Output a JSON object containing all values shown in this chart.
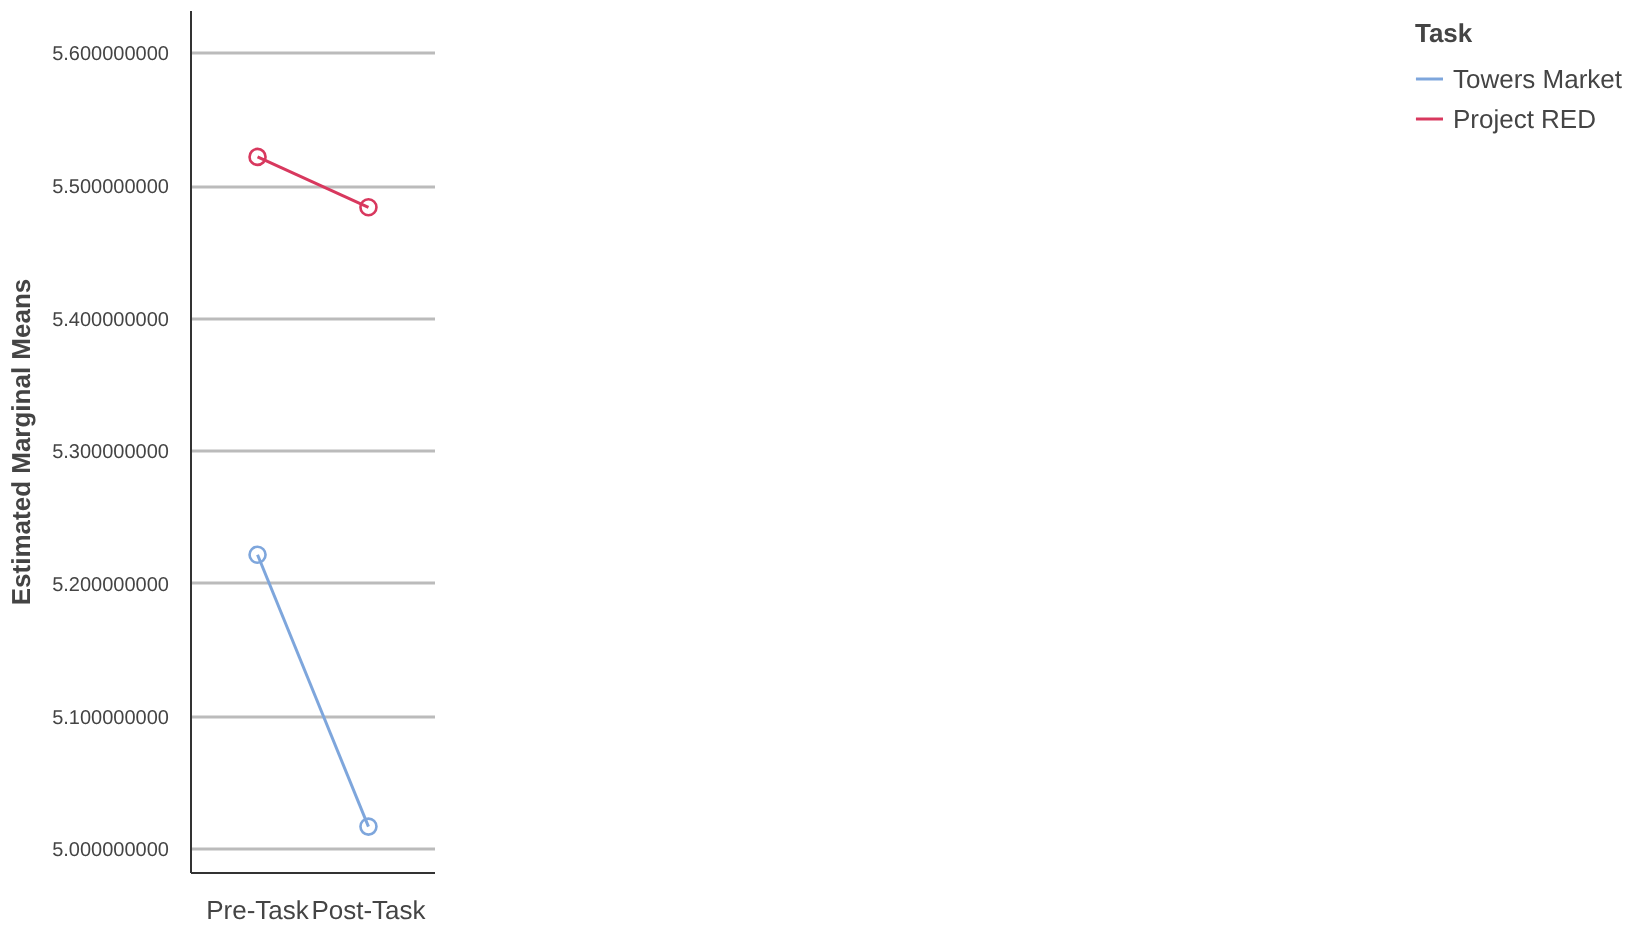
{
  "chart_data": {
    "type": "line",
    "ylabel": "Estimated Marginal Means",
    "legend_title": "Task",
    "categories": [
      "Pre-Task",
      "Post-Task"
    ],
    "series": [
      {
        "name": "Towers Market",
        "color": "#7ea6dc",
        "values": [
          5.222,
          5.017
        ]
      },
      {
        "name": "Project RED",
        "color": "#d8385e",
        "values": [
          5.522,
          5.484
        ]
      }
    ],
    "ylim": [
      4.982,
      5.632
    ],
    "yticks": [
      {
        "value": 5.0,
        "label": "5.000000000"
      },
      {
        "value": 5.1,
        "label": "5.100000000"
      },
      {
        "value": 5.2,
        "label": "5.200000000"
      },
      {
        "value": 5.3,
        "label": "5.300000000"
      },
      {
        "value": 5.4,
        "label": "5.400000000"
      },
      {
        "value": 5.5,
        "label": "5.500000000"
      },
      {
        "value": 5.6,
        "label": "5.600000000"
      }
    ],
    "grid": "y",
    "legend": "top right",
    "marker": "circle",
    "line_style": "solid"
  }
}
